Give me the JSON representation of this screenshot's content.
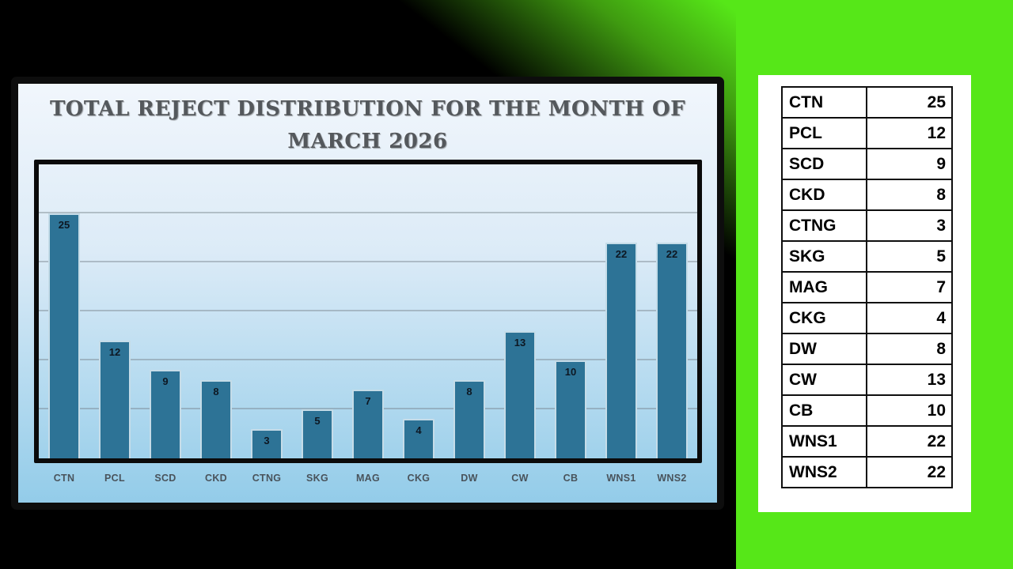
{
  "colors": {
    "background_right": "#56e718",
    "background_left": "#000000",
    "bar_fill": "#2d7396",
    "panel_top": "#f1f6fc",
    "panel_bottom": "#93cce9"
  },
  "chart_card": {
    "title_line1": "TOTAL REJECT DISTRIBUTION FOR THE MONTH OF",
    "title_line2": "MARCH 2026"
  },
  "chart_data": {
    "type": "bar",
    "title": "TOTAL REJECT DISTRIBUTION FOR THE MONTH OF MARCH 2026",
    "categories": [
      "CTN",
      "PCL",
      "SCD",
      "CKD",
      "CTNG",
      "SKG",
      "MAG",
      "CKG",
      "DW",
      "CW",
      "CB",
      "WNS1",
      "WNS2"
    ],
    "values": [
      25,
      12,
      9,
      8,
      3,
      5,
      7,
      4,
      8,
      13,
      10,
      22,
      22
    ],
    "xlabel": "",
    "ylabel": "",
    "ylim": [
      0,
      30
    ],
    "gridlines": [
      5,
      10,
      15,
      20,
      25
    ],
    "grid": true,
    "legend": false,
    "bar_color": "#2d7396"
  },
  "data_table": {
    "rows": [
      {
        "label": "CTN",
        "value": "25"
      },
      {
        "label": "PCL",
        "value": "12"
      },
      {
        "label": "SCD",
        "value": "9"
      },
      {
        "label": "CKD",
        "value": "8"
      },
      {
        "label": "CTNG",
        "value": "3"
      },
      {
        "label": "SKG",
        "value": "5"
      },
      {
        "label": "MAG",
        "value": "7"
      },
      {
        "label": "CKG",
        "value": "4"
      },
      {
        "label": "DW",
        "value": "8"
      },
      {
        "label": "CW",
        "value": "13"
      },
      {
        "label": "CB",
        "value": "10"
      },
      {
        "label": "WNS1",
        "value": "22"
      },
      {
        "label": "WNS2",
        "value": "22"
      }
    ]
  }
}
